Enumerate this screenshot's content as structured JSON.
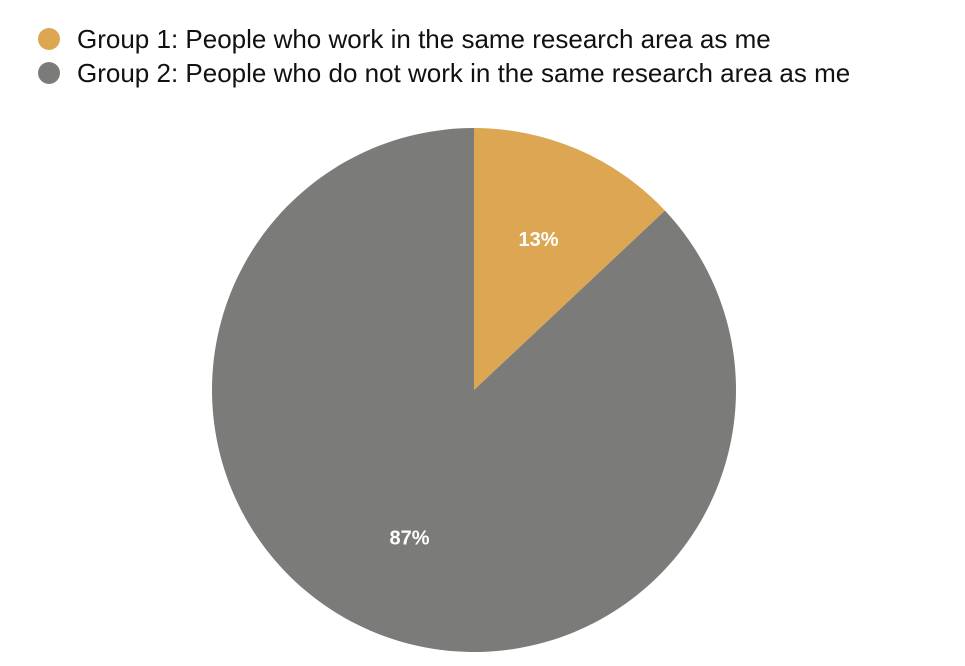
{
  "chart_data": {
    "type": "pie",
    "title": "",
    "legend_position": "top-left",
    "start_angle": "12 o'clock",
    "direction": "clockwise",
    "slices": [
      {
        "name": "Group 1: People who work in the same research area as me",
        "value": 13,
        "label": "13%",
        "color": "#DDA653"
      },
      {
        "name": "Group 2: People who do not work in the same research area as me",
        "value": 87,
        "label": "87%",
        "color": "#7B7C7A"
      }
    ]
  }
}
